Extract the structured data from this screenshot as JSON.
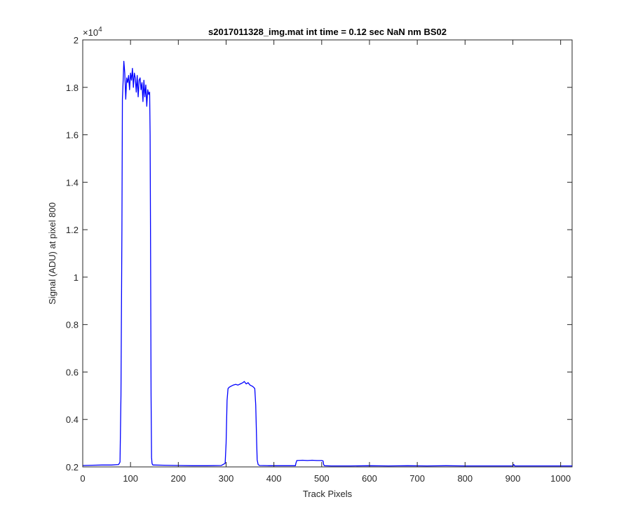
{
  "chart_data": {
    "type": "line",
    "title": "s2017011328_img.mat int time = 0.12 sec  NaN nm BS02",
    "xlabel": "Track Pixels",
    "ylabel": "Signal (ADU) at pixel 800",
    "xlim": [
      0,
      1024
    ],
    "ylim": [
      2000,
      20000
    ],
    "y_exponent_label": "×10",
    "y_exponent_power": "4",
    "x_ticks": [
      0,
      100,
      200,
      300,
      400,
      500,
      600,
      700,
      800,
      900,
      1000
    ],
    "x_tick_labels": [
      "0",
      "100",
      "200",
      "300",
      "400",
      "500",
      "600",
      "700",
      "800",
      "900",
      "1000"
    ],
    "y_ticks": [
      2000,
      4000,
      6000,
      8000,
      10000,
      12000,
      14000,
      16000,
      18000,
      20000
    ],
    "y_tick_labels": [
      "0.2",
      "0.4",
      "0.6",
      "0.8",
      "1",
      "1.2",
      "1.4",
      "1.6",
      "1.8",
      "2"
    ],
    "grid": false,
    "line_color": "#0000ff",
    "series": [
      {
        "x": [
          0,
          20,
          40,
          60,
          75,
          78,
          80,
          82,
          83,
          85,
          86,
          88,
          90,
          92,
          94,
          96,
          98,
          100,
          102,
          104,
          106,
          108,
          110,
          112,
          114,
          116,
          118,
          120,
          122,
          124,
          126,
          128,
          130,
          132,
          134,
          136,
          138,
          140,
          141,
          142,
          143,
          144,
          145,
          146,
          147,
          150,
          170,
          200,
          230,
          260,
          290,
          298,
          300,
          302,
          304,
          306,
          310,
          315,
          320,
          325,
          330,
          335,
          338,
          342,
          346,
          350,
          355,
          358,
          360,
          362,
          364,
          365,
          367,
          370,
          390,
          410,
          430,
          445,
          446,
          448,
          460,
          470,
          480,
          490,
          500,
          503,
          504,
          506,
          520,
          560,
          600,
          640,
          680,
          720,
          760,
          800,
          840,
          880,
          900,
          902,
          904,
          940,
          980,
          1024
        ],
        "y": [
          2060,
          2070,
          2080,
          2080,
          2100,
          2200,
          5000,
          12000,
          17500,
          18500,
          19100,
          18600,
          17500,
          18400,
          18200,
          18500,
          17900,
          18600,
          18300,
          18800,
          18000,
          18600,
          18400,
          17800,
          18500,
          17600,
          18300,
          18400,
          17900,
          18200,
          17400,
          18300,
          17600,
          18100,
          17200,
          17900,
          17700,
          17800,
          16000,
          11000,
          5000,
          2400,
          2150,
          2100,
          2080,
          2080,
          2070,
          2060,
          2050,
          2050,
          2060,
          2150,
          3000,
          4800,
          5300,
          5350,
          5400,
          5450,
          5480,
          5450,
          5500,
          5550,
          5600,
          5500,
          5550,
          5450,
          5400,
          5350,
          5300,
          4600,
          3000,
          2300,
          2100,
          2060,
          2050,
          2050,
          2050,
          2050,
          2150,
          2270,
          2280,
          2270,
          2280,
          2270,
          2270,
          2250,
          2100,
          2050,
          2040,
          2040,
          2050,
          2040,
          2050,
          2040,
          2050,
          2040,
          2040,
          2040,
          2040,
          2100,
          2040,
          2040,
          2040,
          2040
        ]
      }
    ]
  }
}
